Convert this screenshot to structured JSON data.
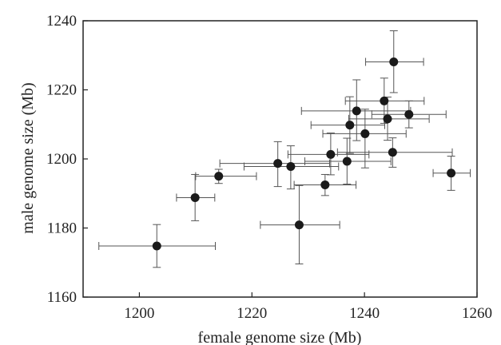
{
  "chart_data": {
    "type": "scatter",
    "title": "",
    "xlabel": "female genome size (Mb)",
    "ylabel": "male genome size (Mb)",
    "xlim": [
      1190,
      1260
    ],
    "ylim": [
      1160,
      1240
    ],
    "xticks": [
      1200,
      1220,
      1240,
      1260
    ],
    "yticks": [
      1160,
      1180,
      1200,
      1220,
      1240
    ],
    "grid": false,
    "legend": "none",
    "marker_color": "#1a1a1a",
    "errorbar_color": "#555555",
    "points": [
      {
        "x": 1203.1,
        "y": 1174.8,
        "xerr": [
          1192.8,
          1213.5
        ],
        "yerr": [
          1168.6,
          1181.0
        ]
      },
      {
        "x": 1209.9,
        "y": 1188.8,
        "xerr": [
          1206.6,
          1213.4
        ],
        "yerr": [
          1182.1,
          1195.5
        ]
      },
      {
        "x": 1214.1,
        "y": 1195.0,
        "xerr": [
          1210.0,
          1220.8
        ],
        "yerr": [
          1192.9,
          1197.0
        ]
      },
      {
        "x": 1224.6,
        "y": 1198.7,
        "xerr": [
          1214.3,
          1233.8
        ],
        "yerr": [
          1192.0,
          1205.0
        ]
      },
      {
        "x": 1226.9,
        "y": 1197.8,
        "xerr": [
          1218.6,
          1235.4
        ],
        "yerr": [
          1191.3,
          1203.8
        ]
      },
      {
        "x": 1228.4,
        "y": 1180.9,
        "xerr": [
          1221.5,
          1235.6
        ],
        "yerr": [
          1169.6,
          1192.3
        ]
      },
      {
        "x": 1233.0,
        "y": 1192.5,
        "xerr": [
          1227.5,
          1238.5
        ],
        "yerr": [
          1189.4,
          1195.5
        ]
      },
      {
        "x": 1234.0,
        "y": 1201.3,
        "xerr": [
          1226.4,
          1240.8
        ],
        "yerr": [
          1195.4,
          1207.5
        ]
      },
      {
        "x": 1236.9,
        "y": 1199.3,
        "xerr": [
          1229.4,
          1244.7
        ],
        "yerr": [
          1192.7,
          1206.0
        ]
      },
      {
        "x": 1237.4,
        "y": 1209.8,
        "xerr": [
          1230.5,
          1243.6
        ],
        "yerr": [
          1201.6,
          1218.0
        ]
      },
      {
        "x": 1238.6,
        "y": 1213.9,
        "xerr": [
          1228.8,
          1248.2
        ],
        "yerr": [
          1205.3,
          1222.9
        ]
      },
      {
        "x": 1240.1,
        "y": 1207.3,
        "xerr": [
          1232.6,
          1247.4
        ],
        "yerr": [
          1197.4,
          1214.4
        ]
      },
      {
        "x": 1243.5,
        "y": 1216.8,
        "xerr": [
          1236.6,
          1250.6
        ],
        "yerr": [
          1210.3,
          1223.4
        ]
      },
      {
        "x": 1244.1,
        "y": 1211.6,
        "xerr": [
          1237.2,
          1251.5
        ],
        "yerr": [
          1205.4,
          1217.9
        ]
      },
      {
        "x": 1245.0,
        "y": 1201.9,
        "xerr": [
          1235.2,
          1255.6
        ],
        "yerr": [
          1197.6,
          1206.1
        ]
      },
      {
        "x": 1245.2,
        "y": 1228.1,
        "xerr": [
          1240.2,
          1250.5
        ],
        "yerr": [
          1219.2,
          1237.1
        ]
      },
      {
        "x": 1247.9,
        "y": 1212.9,
        "xerr": [
          1241.3,
          1254.5
        ],
        "yerr": [
          1209.0,
          1216.8
        ]
      },
      {
        "x": 1255.4,
        "y": 1195.9,
        "xerr": [
          1252.2,
          1258.8
        ],
        "yerr": [
          1190.9,
          1200.8
        ]
      }
    ]
  }
}
